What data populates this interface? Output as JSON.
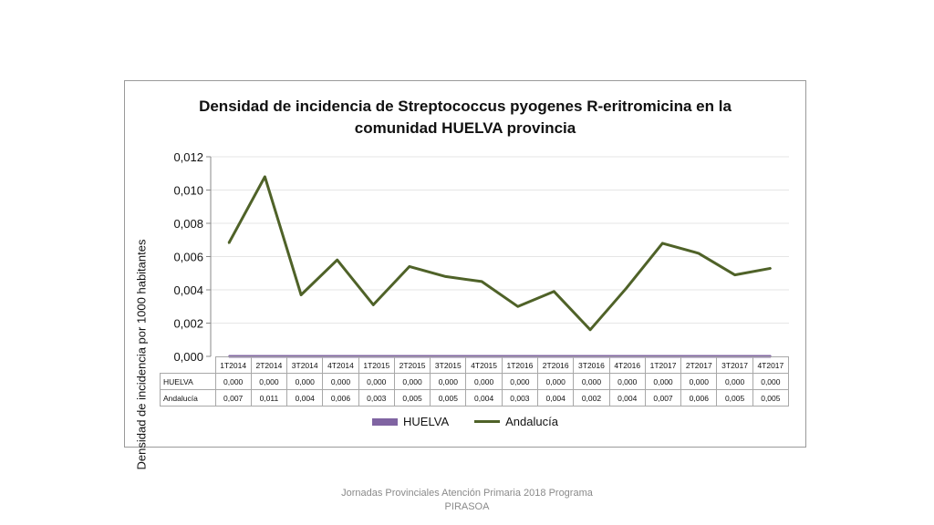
{
  "chart_data": {
    "type": "line",
    "title_line1": "Densidad de incidencia de Streptococcus pyogenes R-eritromicina en la",
    "title_line2": "comunidad HUELVA provincia",
    "ylabel": "Densidad de incidencia por 1000 habitantes",
    "ylim": [
      0,
      0.012
    ],
    "y_ticks": [
      "0,000",
      "0,002",
      "0,004",
      "0,006",
      "0,008",
      "0,010",
      "0,012"
    ],
    "grid": true,
    "categories": [
      "1T2014",
      "2T2014",
      "3T2014",
      "4T2014",
      "1T2015",
      "2T2015",
      "3T2015",
      "4T2015",
      "1T2016",
      "2T2016",
      "3T2016",
      "4T2016",
      "1T2017",
      "2T2017",
      "3T2017",
      "4T2017"
    ],
    "series": [
      {
        "name": "HUELVA",
        "color": "#8064a2",
        "values": [
          0,
          0,
          0,
          0,
          0,
          0,
          0,
          0,
          0,
          0,
          0,
          0,
          0,
          0,
          0,
          0
        ],
        "table_values": [
          "0,000",
          "0,000",
          "0,000",
          "0,000",
          "0,000",
          "0,000",
          "0,000",
          "0,000",
          "0,000",
          "0,000",
          "0,000",
          "0,000",
          "0,000",
          "0,000",
          "0,000",
          "0,000"
        ]
      },
      {
        "name": "Andalucía",
        "color": "#4f6228",
        "values": [
          0.0068,
          0.0108,
          0.0037,
          0.0058,
          0.0031,
          0.0054,
          0.0048,
          0.0045,
          0.003,
          0.0039,
          0.0016,
          0.0041,
          0.0068,
          0.0062,
          0.0049,
          0.0053
        ],
        "table_values": [
          "0,007",
          "0,011",
          "0,004",
          "0,006",
          "0,003",
          "0,005",
          "0,005",
          "0,004",
          "0,003",
          "0,004",
          "0,002",
          "0,004",
          "0,007",
          "0,006",
          "0,005",
          "0,005"
        ]
      }
    ],
    "legend_position": "bottom"
  },
  "footer": "Jornadas Provinciales Atención Primaria 2018 Programa PIRASOA"
}
